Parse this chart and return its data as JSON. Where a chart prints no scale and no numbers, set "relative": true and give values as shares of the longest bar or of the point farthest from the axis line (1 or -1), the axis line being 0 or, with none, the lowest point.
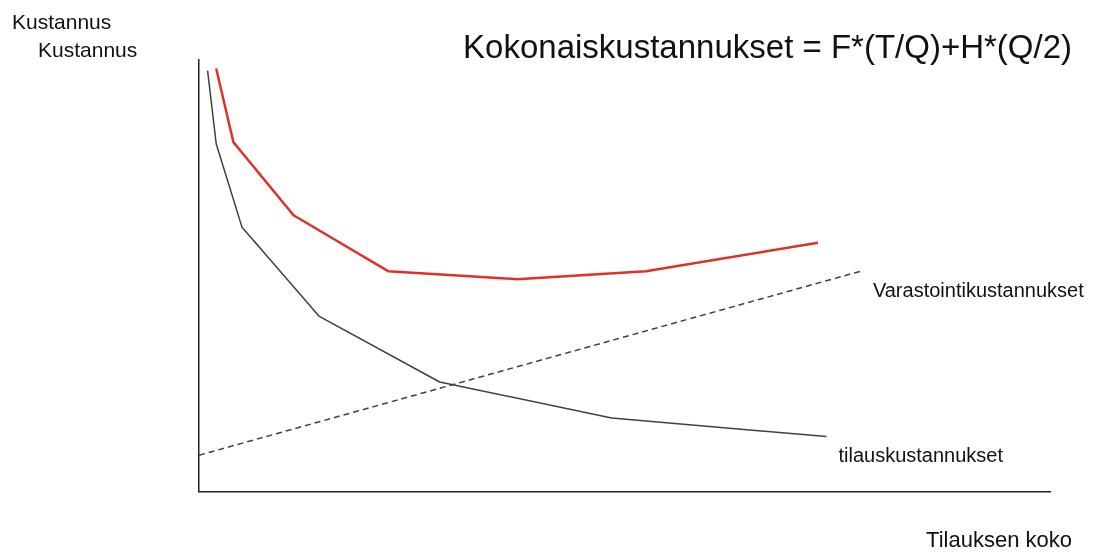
{
  "chart_data": {
    "type": "line",
    "relative": true,
    "title": "Kokonaiskustannukset = F*(T/Q)+H*(Q/2)",
    "xlabel": "Tilauksen koko",
    "ylabel": "Kustannus",
    "annotations": [
      "Kustannus"
    ],
    "legend": false,
    "marker": "none",
    "categories": [
      null,
      null,
      null,
      null,
      null,
      null,
      null,
      null,
      null,
      null,
      null,
      null,
      null,
      null,
      null,
      null,
      null,
      null,
      null,
      null,
      null,
      null,
      null,
      null,
      null,
      null,
      null,
      null,
      null,
      null,
      null,
      null,
      null,
      null,
      null,
      null,
      null,
      null,
      null,
      null,
      null,
      null,
      null,
      null,
      null,
      null,
      null,
      null,
      null,
      null,
      null,
      null,
      null,
      null,
      null,
      null,
      null,
      null,
      null,
      null,
      null,
      null,
      null,
      null,
      null,
      null,
      null,
      null,
      null,
      null,
      null,
      null,
      null,
      null,
      null,
      null,
      null,
      null,
      null,
      null,
      null,
      null,
      null,
      null,
      null,
      null,
      null,
      null,
      null,
      null,
      null,
      null,
      null,
      null,
      null,
      null,
      null,
      null,
      null,
      null
    ],
    "series": [
      {
        "color": "#e0302a",
        "values": [
          null,
          null,
          1.0,
          null,
          0.826,
          null,
          null,
          null,
          null,
          null,
          null,
          0.653,
          null,
          null,
          null,
          null,
          null,
          null,
          null,
          null,
          null,
          null,
          0.521,
          null,
          null,
          null,
          null,
          null,
          null,
          null,
          null,
          null,
          null,
          null,
          null,
          null,
          null,
          0.502,
          null,
          null,
          null,
          null,
          null,
          null,
          null,
          null,
          null,
          null,
          null,
          null,
          null,
          null,
          0.521,
          null,
          null,
          null,
          null,
          null,
          null,
          null,
          null,
          null,
          null,
          null,
          null,
          null,
          null,
          null,
          null,
          null,
          null,
          null,
          0.588,
          null,
          null,
          null,
          null,
          null,
          null,
          null,
          null,
          null,
          null,
          null,
          null,
          null,
          null,
          null,
          null,
          null,
          null,
          null,
          null,
          null,
          null,
          null,
          null,
          null,
          null,
          null
        ]
      },
      {
        "name": "Varastointikustannukset",
        "color": "#404040",
        "line_style": "dashed",
        "values": [
          0.086,
          null,
          null,
          null,
          null,
          null,
          null,
          null,
          null,
          null,
          null,
          null,
          null,
          null,
          null,
          null,
          null,
          null,
          null,
          null,
          null,
          null,
          null,
          null,
          null,
          null,
          null,
          null,
          null,
          null,
          null,
          null,
          null,
          null,
          null,
          null,
          null,
          null,
          null,
          null,
          null,
          null,
          null,
          null,
          null,
          null,
          null,
          null,
          null,
          null,
          null,
          null,
          null,
          null,
          null,
          null,
          null,
          null,
          null,
          null,
          null,
          null,
          null,
          null,
          null,
          null,
          null,
          null,
          null,
          null,
          null,
          null,
          null,
          null,
          null,
          null,
          null,
          0.521,
          null,
          null,
          null,
          null,
          null,
          null,
          null,
          null,
          null,
          null,
          null,
          null,
          null,
          null,
          null,
          null,
          null,
          null,
          null,
          null,
          null,
          null
        ]
      },
      {
        "name": "tilauskustannukset",
        "color": "#404040",
        "line_style": "solid",
        "values": [
          null,
          0.995,
          0.822,
          null,
          null,
          0.625,
          null,
          null,
          null,
          null,
          null,
          null,
          null,
          null,
          0.414,
          null,
          null,
          null,
          null,
          null,
          null,
          null,
          null,
          null,
          null,
          null,
          null,
          null,
          0.259,
          null,
          null,
          null,
          null,
          null,
          null,
          null,
          null,
          null,
          null,
          null,
          null,
          null,
          null,
          null,
          null,
          null,
          null,
          null,
          0.174,
          null,
          null,
          null,
          null,
          null,
          null,
          null,
          null,
          null,
          null,
          null,
          null,
          null,
          null,
          null,
          null,
          null,
          null,
          null,
          null,
          null,
          null,
          null,
          null,
          0.13,
          null,
          null,
          null,
          null,
          null,
          null,
          null,
          null,
          null,
          null,
          null,
          null,
          null,
          null,
          null,
          null,
          null,
          null,
          null,
          null,
          null,
          null,
          null,
          null,
          null,
          null
        ]
      }
    ]
  }
}
